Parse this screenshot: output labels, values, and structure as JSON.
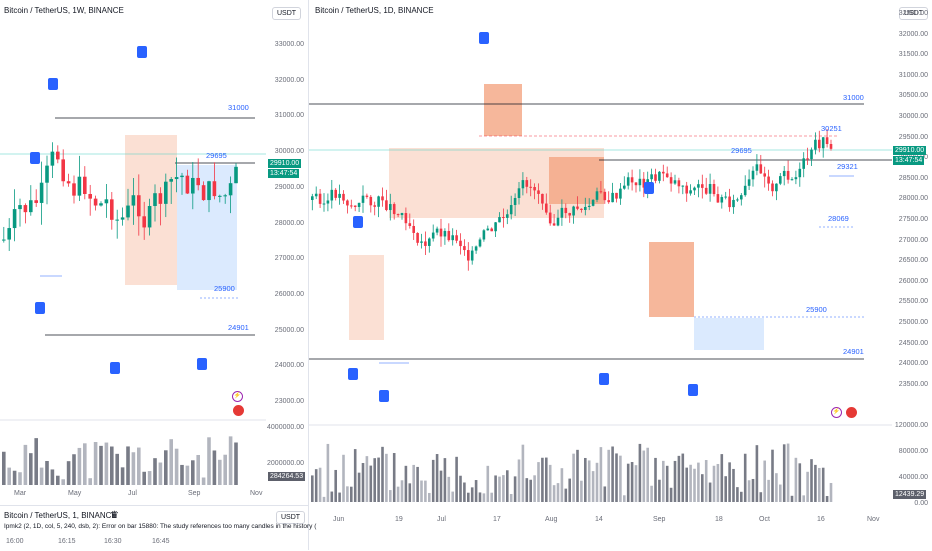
{
  "left_chart": {
    "title": "Bitcoin / TetherUS, 1W, BINANCE",
    "currency_button": "USDT",
    "price_ticks": [
      "33000.00",
      "32000.00",
      "31000.00",
      "30000.00",
      "29000.00",
      "28000.00",
      "27000.00",
      "26000.00",
      "25000.00",
      "24000.00",
      "23000.00"
    ],
    "volume_ticks": [
      "4000000.00",
      "2000000.00"
    ],
    "x_ticks": [
      "Mar",
      "May",
      "Jul",
      "Sep",
      "Nov"
    ],
    "levels": {
      "l31000": "31000",
      "l29695": "29695",
      "l25900": "25900",
      "l24901": "24901"
    },
    "last_price": "29910.00",
    "countdown": "13:47:54",
    "volume_label": "284264.53"
  },
  "right_chart": {
    "title": "Bitcoin / TetherUS, 1D, BINANCE",
    "currency_button": "USDT",
    "price_ticks": [
      "32500.00",
      "32000.00",
      "31500.00",
      "31000.00",
      "30500.00",
      "30000.00",
      "29500.00",
      "29000.00",
      "28500.00",
      "28000.00",
      "27500.00",
      "27000.00",
      "26500.00",
      "26000.00",
      "25500.00",
      "25000.00",
      "24500.00",
      "24000.00",
      "23500.00"
    ],
    "volume_ticks": [
      "120000.00",
      "80000.00",
      "40000.00",
      "0.00"
    ],
    "x_ticks": [
      "Jun",
      "19",
      "Jul",
      "17",
      "Aug",
      "14",
      "Sep",
      "18",
      "Oct",
      "16",
      "Nov"
    ],
    "levels": {
      "l31000": "31000",
      "l30251": "30251",
      "l29695": "29695",
      "l29321": "29321",
      "l28069": "28069",
      "l25900": "25900",
      "l24901": "24901"
    },
    "last_price": "29910.00",
    "countdown": "13:47:54",
    "volume_label": "12439.29"
  },
  "bottom_chart": {
    "title": "Bitcoin / TetherUS, 1, BINANCE",
    "currency_button": "USDT",
    "indicator_text": "Ipmk2 (2, 1D, col, 5, 240, dsb, 2): Error on bar 15880: The study references too many candles in the history (",
    "x_ticks": [
      "16:00",
      "16:15",
      "16:30",
      "16:45"
    ]
  },
  "colors": {
    "up": "#089981",
    "down": "#f23645",
    "accent": "#2962ff"
  }
}
